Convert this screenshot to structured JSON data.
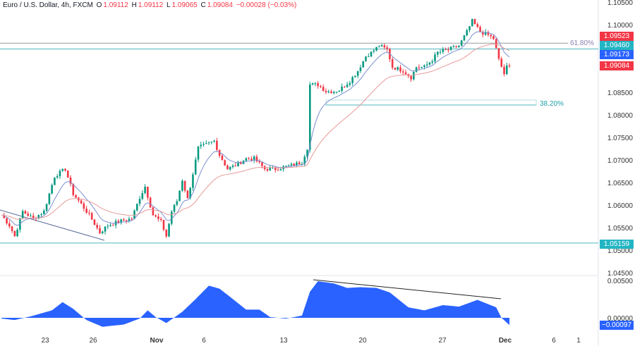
{
  "header": {
    "symbol": "Euro / U.S. Dollar, 4h, FXCM",
    "o_label": "O",
    "o": "1.09112",
    "h_label": "H",
    "h": "1.09112",
    "l_label": "L",
    "l": "1.09065",
    "c_label": "C",
    "c": "1.09084",
    "change": "−0.00028 (−0.03%)"
  },
  "colors": {
    "up": "#089981",
    "down": "#f23645",
    "ema_fast": "#7b8fd0",
    "ema_slow": "#e89a9a",
    "teal": "#4fb8bf",
    "fib": "#8b7fb0",
    "osc": "#2962ff"
  },
  "price_axis": {
    "labels": [
      "1.10500",
      "1.10000",
      "1.08500",
      "1.08000",
      "1.07500",
      "1.07000",
      "1.06500",
      "1.06000",
      "1.05500",
      "1.05000",
      "1.04500"
    ]
  },
  "osc_axis": {
    "labels": [
      "0.00500",
      "0.00000"
    ]
  },
  "time_axis": {
    "labels": [
      "23",
      "26",
      "Nov",
      "6",
      "13",
      "20",
      "27",
      "Dec",
      "6",
      "1"
    ]
  },
  "badges": [
    {
      "value": "1.09523",
      "color": "#f23645"
    },
    {
      "value": "1.09460",
      "color": "#22b5c4"
    },
    {
      "value": "1.09173",
      "color": "#2962ff"
    },
    {
      "value": "1.09084",
      "color": "#f23645"
    },
    {
      "value": "1.05159",
      "color": "#22b5c4"
    },
    {
      "value": "−0.00097",
      "color": "#2962ff"
    }
  ],
  "levels": {
    "fib618_label": "61.80%",
    "fib382_label": "38.20%",
    "fib618": 1.0959,
    "resistance": 1.0946,
    "support": 1.05159
  },
  "chart_data": {
    "type": "candlestick",
    "title": "Euro / U.S. Dollar, 4h, FXCM",
    "ylim": [
      1.0445,
      1.1055
    ],
    "close_keypoints": [
      [
        0,
        1.0578
      ],
      [
        3,
        1.0555
      ],
      [
        5,
        1.0531
      ],
      [
        8,
        1.0586
      ],
      [
        12,
        1.057
      ],
      [
        16,
        1.0586
      ],
      [
        20,
        1.0664
      ],
      [
        24,
        1.068
      ],
      [
        27,
        1.0625
      ],
      [
        30,
        1.0602
      ],
      [
        33,
        1.0578
      ],
      [
        37,
        1.0539
      ],
      [
        40,
        1.0555
      ],
      [
        44,
        1.0563
      ],
      [
        49,
        1.057
      ],
      [
        52,
        1.0617
      ],
      [
        54,
        1.0641
      ],
      [
        57,
        1.0578
      ],
      [
        60,
        1.0563
      ],
      [
        62,
        1.0531
      ],
      [
        64,
        1.0586
      ],
      [
        66,
        1.0609
      ],
      [
        68,
        1.0656
      ],
      [
        70,
        1.0613
      ],
      [
        74,
        1.0727
      ],
      [
        77,
        1.0734
      ],
      [
        80,
        1.0742
      ],
      [
        82,
        1.0711
      ],
      [
        85,
        1.068
      ],
      [
        88,
        1.0688
      ],
      [
        92,
        1.0703
      ],
      [
        95,
        1.0703
      ],
      [
        99,
        1.068
      ],
      [
        103,
        1.068
      ],
      [
        109,
        1.0688
      ],
      [
        113,
        1.0695
      ],
      [
        115,
        1.0727
      ],
      [
        116,
        1.0867
      ],
      [
        119,
        1.0867
      ],
      [
        122,
        1.0852
      ],
      [
        125,
        1.0852
      ],
      [
        127,
        1.0855
      ],
      [
        131,
        1.0875
      ],
      [
        134,
        1.0898
      ],
      [
        137,
        1.093
      ],
      [
        139,
        1.0938
      ],
      [
        142,
        1.0953
      ],
      [
        145,
        1.0945
      ],
      [
        147,
        1.0906
      ],
      [
        151,
        1.0898
      ],
      [
        154,
        1.0883
      ],
      [
        156,
        1.0906
      ],
      [
        159,
        1.0906
      ],
      [
        162,
        1.0922
      ],
      [
        164,
        1.0938
      ],
      [
        168,
        1.0945
      ],
      [
        172,
        1.0953
      ],
      [
        175,
        1.0984
      ],
      [
        177,
        1.1008
      ],
      [
        180,
        1.0984
      ],
      [
        183,
        1.0977
      ],
      [
        185,
        1.0969
      ],
      [
        187,
        1.0922
      ],
      [
        189,
        1.0891
      ],
      [
        190,
        1.0906
      ],
      [
        191,
        1.0908
      ]
    ],
    "ema_periods": [
      9,
      30
    ],
    "oscillator": {
      "ylim": [
        -0.0013,
        0.0056
      ],
      "keypoints": [
        [
          0,
          -0.0001
        ],
        [
          5,
          -0.0003
        ],
        [
          11,
          0.0002
        ],
        [
          19,
          0.001
        ],
        [
          23,
          0.0021
        ],
        [
          27,
          0.0012
        ],
        [
          32,
          -0.0003
        ],
        [
          38,
          -0.0012
        ],
        [
          46,
          -0.0009
        ],
        [
          52,
          -0.0001
        ],
        [
          55,
          0.001
        ],
        [
          58,
          0.0001
        ],
        [
          62,
          -0.0007
        ],
        [
          68,
          0.0008
        ],
        [
          73,
          0.0025
        ],
        [
          78,
          0.0043
        ],
        [
          82,
          0.0039
        ],
        [
          86,
          0.0028
        ],
        [
          92,
          0.0011
        ],
        [
          97,
          0.0011
        ],
        [
          101,
          0.0001
        ],
        [
          107,
          -0.0001
        ],
        [
          113,
          0.0003
        ],
        [
          116,
          0.0035
        ],
        [
          119,
          0.0049
        ],
        [
          125,
          0.0046
        ],
        [
          130,
          0.004
        ],
        [
          135,
          0.0041
        ],
        [
          141,
          0.004
        ],
        [
          146,
          0.0034
        ],
        [
          153,
          0.0014
        ],
        [
          159,
          0.001
        ],
        [
          166,
          0.0017
        ],
        [
          172,
          0.0015
        ],
        [
          179,
          0.0024
        ],
        [
          186,
          0.0014
        ],
        [
          188,
          0.0
        ],
        [
          191,
          -0.00097
        ]
      ]
    }
  }
}
